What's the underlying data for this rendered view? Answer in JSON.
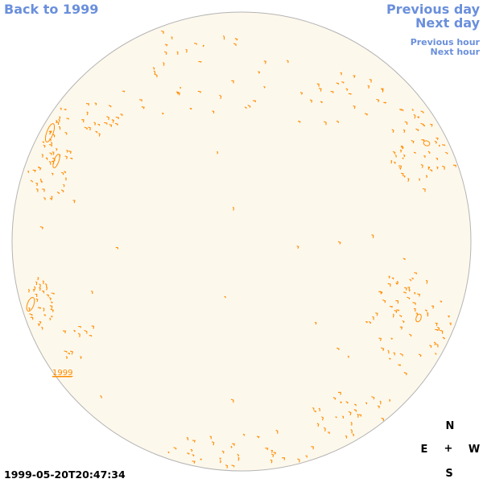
{
  "nav": {
    "back_label": "Back to 1999",
    "prev_day_label": "Previous day",
    "next_day_label": "Next day",
    "prev_hour_label": "Previous hour",
    "next_hour_label": "Next hour"
  },
  "map": {
    "disk_fill": "#fdf8ec",
    "disk_stroke": "#b4b4b4",
    "feature_color": "#ff8c00",
    "year_marker_label": "1999"
  },
  "compass": {
    "north": "N",
    "east": "E",
    "center": "+",
    "west": "W",
    "south": "S"
  },
  "timestamp": "1999-05-20T20:47:34"
}
